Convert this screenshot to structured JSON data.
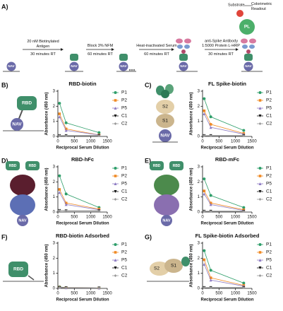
{
  "panel_a": {
    "letter": "A)",
    "steps": [
      {
        "reagent": "20 nM Biotinylated Antigen",
        "time": "30 minutes RT"
      },
      {
        "reagent": "Block 3% NFM",
        "time": "60 minutes RT"
      },
      {
        "reagent": "Heat-inactivated Serum",
        "time": "60 minutes RT"
      },
      {
        "reagent": "1:5000 Protein L-HRP",
        "time": "30 minutes RT"
      }
    ],
    "labels": {
      "antibody": "anti-Spike Antibody",
      "protein_l": "PL",
      "substrate": "Substrate",
      "readout": "Colorimetric Readout",
      "nav": "NAV"
    }
  },
  "panels": [
    {
      "letter": "B)",
      "diagram": [
        "RBD",
        "NAV"
      ]
    },
    {
      "letter": "C)",
      "diagram": [
        "S2",
        "S1",
        "NAV"
      ]
    },
    {
      "letter": "D)",
      "diagram": [
        "RBD",
        "RBD",
        "NAV"
      ]
    },
    {
      "letter": "E)",
      "diagram": [
        "RBD",
        "RBD",
        "NAV"
      ]
    },
    {
      "letter": "F)",
      "diagram": [
        "RBD"
      ]
    },
    {
      "letter": "G)",
      "diagram": [
        "S2",
        "S1"
      ]
    }
  ],
  "chart_data": [
    {
      "type": "line",
      "title": "RBD-biotin",
      "xlabel": "Reciprocal Serum Dilution",
      "ylabel": "Absorbance (450 nm)",
      "x": [
        50,
        250,
        1250
      ],
      "xlim": [
        0,
        1500
      ],
      "xticks": [
        0,
        500,
        1000,
        1500
      ],
      "ylim": [
        0,
        3
      ],
      "yticks": [
        0,
        1,
        2,
        3
      ],
      "series": [
        {
          "name": "P1",
          "color": "#2e9e6a",
          "marker": "circle",
          "values": [
            2.2,
            0.9,
            0.25
          ]
        },
        {
          "name": "P2",
          "color": "#f08a24",
          "marker": "square",
          "values": [
            1.5,
            0.5,
            0.1
          ]
        },
        {
          "name": "P5",
          "color": "#8e7cc3",
          "marker": "triangle",
          "values": [
            1.3,
            0.4,
            0.1
          ]
        },
        {
          "name": "C1",
          "color": "#111111",
          "marker": "triangle-down",
          "values": [
            0.05,
            0.05,
            0.05
          ]
        },
        {
          "name": "C2",
          "color": "#999999",
          "marker": "diamond",
          "values": [
            0.05,
            0.04,
            0.04
          ]
        }
      ]
    },
    {
      "type": "line",
      "title": "FL Spike-biotin",
      "xlabel": "Reciprocal Serum Dilution",
      "ylabel": "Absorbance (450 nm)",
      "x": [
        50,
        250,
        1250
      ],
      "xlim": [
        0,
        1500
      ],
      "xticks": [
        0,
        500,
        1000,
        1500
      ],
      "ylim": [
        0,
        3
      ],
      "yticks": [
        0,
        1,
        2,
        3
      ],
      "series": [
        {
          "name": "P1",
          "color": "#2e9e6a",
          "marker": "circle",
          "values": [
            2.5,
            1.3,
            0.4
          ]
        },
        {
          "name": "P2",
          "color": "#f08a24",
          "marker": "square",
          "values": [
            1.7,
            0.8,
            0.2
          ]
        },
        {
          "name": "P5",
          "color": "#8e7cc3",
          "marker": "triangle",
          "values": [
            1.5,
            0.6,
            0.15
          ]
        },
        {
          "name": "C1",
          "color": "#111111",
          "marker": "triangle-down",
          "values": [
            0.05,
            0.05,
            0.05
          ]
        },
        {
          "name": "C2",
          "color": "#999999",
          "marker": "diamond",
          "values": [
            0.05,
            0.04,
            0.04
          ]
        }
      ]
    },
    {
      "type": "line",
      "title": "RBD-hFc",
      "xlabel": "Reciprocal Serum Dilution",
      "ylabel": "Absorbance (450 nm)",
      "x": [
        50,
        250,
        1250
      ],
      "xlim": [
        0,
        1500
      ],
      "xticks": [
        0,
        500,
        1000,
        1500
      ],
      "ylim": [
        0,
        3
      ],
      "yticks": [
        0,
        1,
        2,
        3
      ],
      "series": [
        {
          "name": "P1",
          "color": "#2e9e6a",
          "marker": "circle",
          "values": [
            2.4,
            1.2,
            0.3
          ]
        },
        {
          "name": "P2",
          "color": "#f08a24",
          "marker": "square",
          "values": [
            1.5,
            0.6,
            0.2
          ]
        },
        {
          "name": "P5",
          "color": "#8e7cc3",
          "marker": "triangle",
          "values": [
            1.3,
            0.5,
            0.15
          ]
        },
        {
          "name": "C1",
          "color": "#111111",
          "marker": "triangle-down",
          "values": [
            0.1,
            0.08,
            0.08
          ]
        },
        {
          "name": "C2",
          "color": "#999999",
          "marker": "diamond",
          "values": [
            0.1,
            0.08,
            0.07
          ]
        }
      ]
    },
    {
      "type": "line",
      "title": "RBD-mFc",
      "xlabel": "Reciprocal Serum Dilution",
      "ylabel": "Absorbance (450 nm)",
      "x": [
        50,
        250,
        1250
      ],
      "xlim": [
        0,
        1500
      ],
      "xticks": [
        0,
        500,
        1000,
        1500
      ],
      "ylim": [
        0,
        3
      ],
      "yticks": [
        0,
        1,
        2,
        3
      ],
      "series": [
        {
          "name": "P1",
          "color": "#2e9e6a",
          "marker": "circle",
          "values": [
            2.2,
            1.1,
            0.3
          ]
        },
        {
          "name": "P2",
          "color": "#f08a24",
          "marker": "square",
          "values": [
            1.4,
            0.6,
            0.15
          ]
        },
        {
          "name": "P5",
          "color": "#8e7cc3",
          "marker": "triangle",
          "values": [
            1.2,
            0.5,
            0.1
          ]
        },
        {
          "name": "C1",
          "color": "#111111",
          "marker": "triangle-down",
          "values": [
            0.05,
            0.05,
            0.05
          ]
        },
        {
          "name": "C2",
          "color": "#999999",
          "marker": "diamond",
          "values": [
            0.05,
            0.04,
            0.04
          ]
        }
      ]
    },
    {
      "type": "line",
      "title": "RBD-biotin Adsorbed",
      "xlabel": "Reciprocal Serum Dilution",
      "ylabel": "Absorbance (450 nm)",
      "x": [
        50,
        250,
        1250
      ],
      "xlim": [
        0,
        1500
      ],
      "xticks": [
        0,
        500,
        1000,
        1500
      ],
      "ylim": [
        0,
        3
      ],
      "yticks": [
        0,
        1,
        2,
        3
      ],
      "series": [
        {
          "name": "P1",
          "color": "#2e9e6a",
          "marker": "circle",
          "values": [
            0.1,
            0.05,
            0.03
          ]
        },
        {
          "name": "P2",
          "color": "#f08a24",
          "marker": "square",
          "values": [
            0.08,
            0.05,
            0.03
          ]
        },
        {
          "name": "P5",
          "color": "#8e7cc3",
          "marker": "triangle",
          "values": [
            0.08,
            0.04,
            0.03
          ]
        },
        {
          "name": "C1",
          "color": "#111111",
          "marker": "triangle-down",
          "values": [
            0.05,
            0.04,
            0.03
          ]
        },
        {
          "name": "C2",
          "color": "#999999",
          "marker": "diamond",
          "values": [
            0.05,
            0.04,
            0.03
          ]
        }
      ]
    },
    {
      "type": "line",
      "title": "FL Spike-biotin Adsorbed",
      "xlabel": "Reciprocal Serum Dilution",
      "ylabel": "Absorbance (450 nm)",
      "x": [
        50,
        250,
        1250
      ],
      "xlim": [
        0,
        1500
      ],
      "xticks": [
        0,
        500,
        1000,
        1500
      ],
      "ylim": [
        0,
        3
      ],
      "yticks": [
        0,
        1,
        2,
        3
      ],
      "series": [
        {
          "name": "P1",
          "color": "#2e9e6a",
          "marker": "circle",
          "values": [
            2.5,
            1.2,
            0.35
          ]
        },
        {
          "name": "P2",
          "color": "#f08a24",
          "marker": "square",
          "values": [
            1.9,
            0.7,
            0.2
          ]
        },
        {
          "name": "P5",
          "color": "#8e7cc3",
          "marker": "triangle",
          "values": [
            1.6,
            0.55,
            0.15
          ]
        },
        {
          "name": "C1",
          "color": "#111111",
          "marker": "triangle-down",
          "values": [
            0.05,
            0.05,
            0.05
          ]
        },
        {
          "name": "C2",
          "color": "#999999",
          "marker": "diamond",
          "values": [
            0.05,
            0.04,
            0.04
          ]
        }
      ]
    }
  ]
}
